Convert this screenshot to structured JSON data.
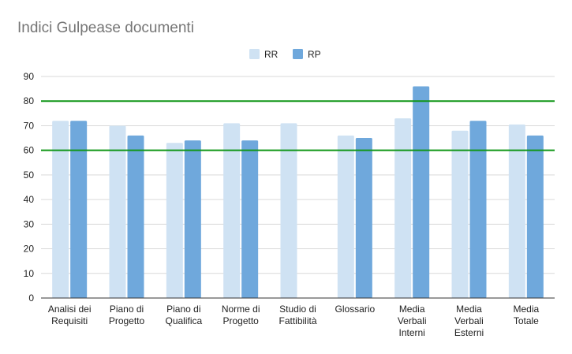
{
  "chart_data": {
    "type": "bar",
    "title": "Indici Gulpease documenti",
    "xlabel": "",
    "ylabel": "",
    "ylim": [
      0,
      90
    ],
    "yticks": [
      0,
      10,
      20,
      30,
      40,
      50,
      60,
      70,
      80,
      90
    ],
    "grid": true,
    "legend_position": "top",
    "categories": [
      [
        "Analisi dei",
        "Requisiti"
      ],
      [
        "Piano di",
        "Progetto"
      ],
      [
        "Piano di",
        "Qualifica"
      ],
      [
        "Norme di",
        "Progetto"
      ],
      [
        "Studio di",
        "Fattibilità"
      ],
      [
        "Glossario"
      ],
      [
        "Media",
        "Verbali",
        "Interni"
      ],
      [
        "Media",
        "Verbali",
        "Esterni"
      ],
      [
        "Media",
        "Totale"
      ]
    ],
    "series": [
      {
        "name": "RR",
        "color": "#cfe2f3",
        "values": [
          72,
          70,
          63,
          71,
          71,
          66,
          73,
          68,
          70.5
        ]
      },
      {
        "name": "RP",
        "color": "#6fa8dc",
        "values": [
          72,
          66,
          64,
          64,
          null,
          65,
          86,
          72,
          66
        ]
      }
    ],
    "reference_lines": [
      {
        "value": 80,
        "color": "#109618"
      },
      {
        "value": 60,
        "color": "#109618"
      }
    ]
  }
}
